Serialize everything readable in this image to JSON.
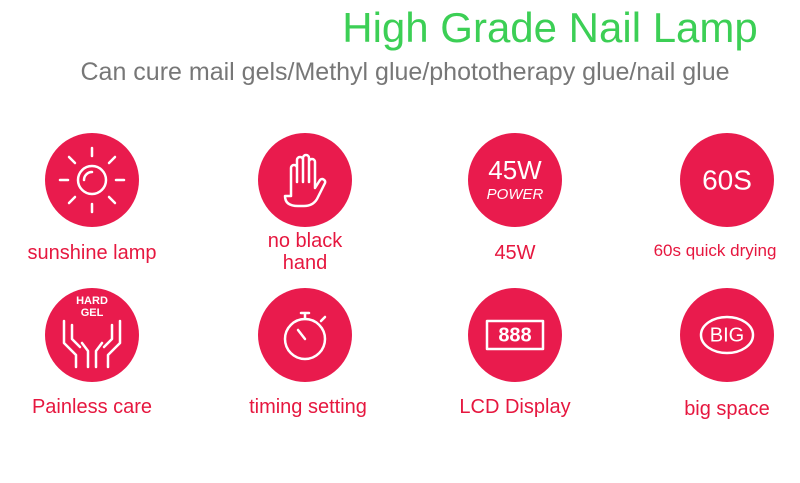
{
  "header": {
    "title": "High Grade Nail Lamp",
    "subtitle": "Can cure mail gels/Methyl glue/phototherapy glue/nail glue"
  },
  "features": [
    {
      "label": "sunshine lamp"
    },
    {
      "label": "no black hand"
    },
    {
      "label": "45W",
      "icon_text": [
        "45W",
        "POWER"
      ]
    },
    {
      "label": "60s quick drying",
      "icon_text": [
        "60S"
      ]
    },
    {
      "label": "Painless care",
      "icon_text": [
        "HARD",
        "GEL"
      ]
    },
    {
      "label": "timing setting"
    },
    {
      "label": "LCD Display",
      "icon_text": [
        "888"
      ]
    },
    {
      "label": "big space",
      "icon_text": [
        "BIG"
      ]
    }
  ]
}
